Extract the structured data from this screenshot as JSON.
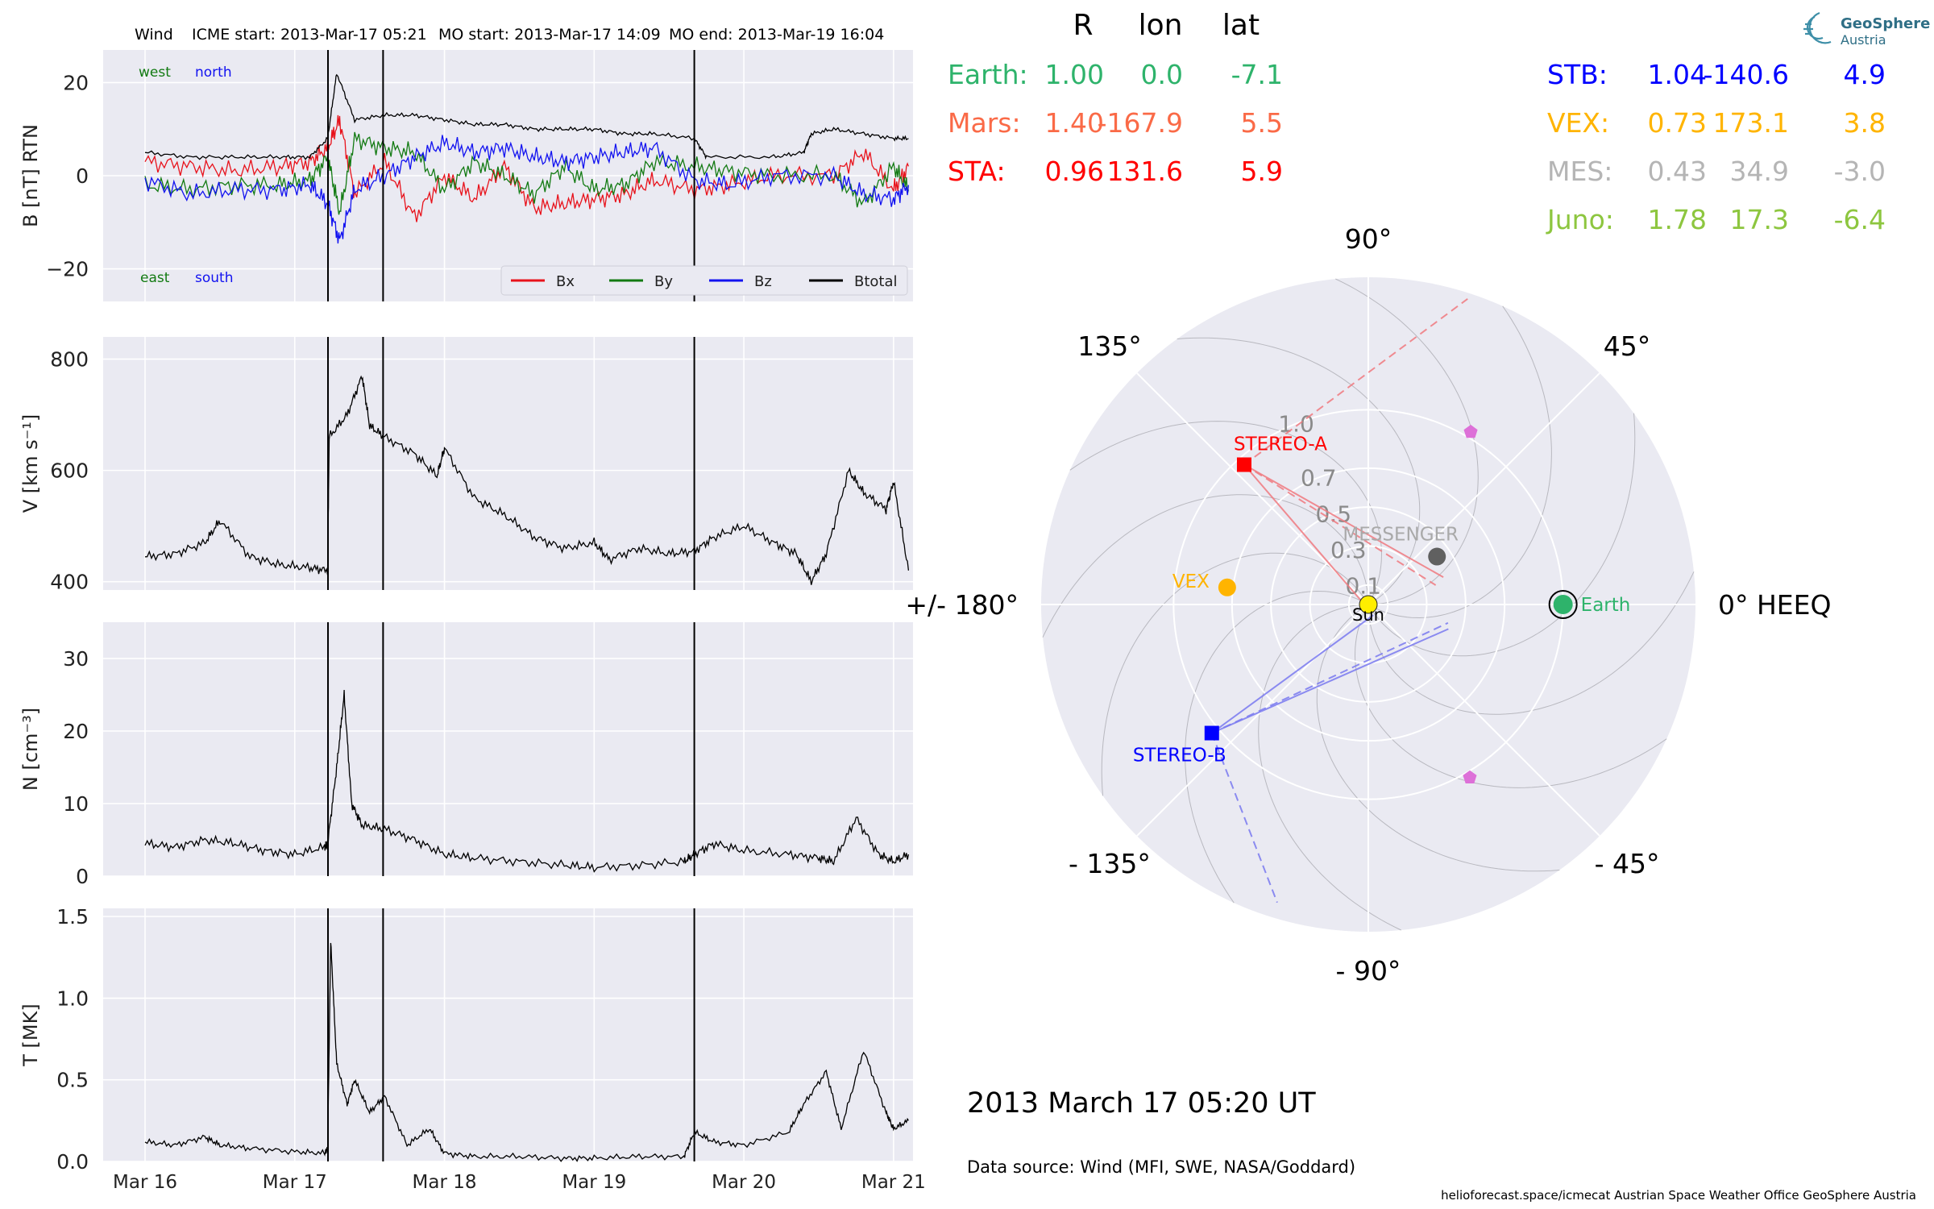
{
  "header": {
    "spacecraft": "Wind",
    "icme_start": "ICME start: 2013-Mar-17 05:21",
    "mo_start": "MO start: 2013-Mar-17 14:09",
    "mo_end": "MO end: 2013-Mar-19 16:04"
  },
  "chart_data": [
    {
      "type": "line",
      "panel": "magnetic-field",
      "ylabel": "B [nT] RTN",
      "ylim": [
        -27,
        27
      ],
      "yticks": [
        -20,
        0,
        20
      ],
      "ytick_labels": [
        "−20",
        "0",
        "20"
      ],
      "direction_labels": {
        "west": "west",
        "north": "north",
        "east": "east",
        "south": "south"
      },
      "legend": {
        "placement": "lower-right",
        "entries": [
          "Bx",
          "By",
          "Bz",
          "Btotal"
        ]
      },
      "series": [
        {
          "name": "Bx",
          "color": "#e8121b",
          "x": [
            16.0,
            16.3,
            16.6,
            16.9,
            17.1,
            17.22,
            17.3,
            17.4,
            17.6,
            17.8,
            18.0,
            18.2,
            18.4,
            18.6,
            18.8,
            19.0,
            19.2,
            19.4,
            19.67,
            19.9,
            20.2,
            20.6,
            20.8,
            21.0,
            21.1
          ],
          "y": [
            3,
            2,
            1,
            2,
            3,
            6,
            12,
            -4,
            3,
            -9,
            0,
            -5,
            2,
            -7,
            -6,
            -5,
            -4,
            -1,
            -3,
            -2,
            0,
            0,
            5,
            -3,
            2
          ]
        },
        {
          "name": "By",
          "color": "#127a12",
          "x": [
            16.0,
            16.3,
            16.6,
            16.9,
            17.1,
            17.22,
            17.3,
            17.4,
            17.6,
            17.8,
            18.0,
            18.2,
            18.4,
            18.6,
            18.8,
            19.0,
            19.2,
            19.4,
            19.67,
            19.9,
            20.2,
            20.6,
            20.8,
            21.0,
            21.1
          ],
          "y": [
            -2,
            -3,
            -2,
            -2,
            -1,
            4,
            -8,
            8,
            6,
            5,
            -3,
            3,
            0,
            -4,
            2,
            -3,
            -2,
            3,
            2,
            1,
            0,
            0,
            -6,
            2,
            -3
          ]
        },
        {
          "name": "Bz",
          "color": "#1212f0",
          "x": [
            16.0,
            16.3,
            16.6,
            16.9,
            17.1,
            17.22,
            17.3,
            17.4,
            17.6,
            17.8,
            18.0,
            18.2,
            18.4,
            18.6,
            18.8,
            19.0,
            19.2,
            19.4,
            19.67,
            19.9,
            20.2,
            20.6,
            20.8,
            21.0,
            21.1
          ],
          "y": [
            -1,
            -4,
            -3,
            -3,
            -2,
            -6,
            -14,
            -3,
            0,
            4,
            7,
            5,
            6,
            4,
            3,
            4,
            5,
            6,
            -1,
            -2,
            0,
            0,
            -4,
            -5,
            -2
          ]
        },
        {
          "name": "Btotal",
          "color": "#000000",
          "x": [
            16.0,
            16.3,
            16.6,
            16.9,
            17.1,
            17.22,
            17.28,
            17.4,
            17.6,
            17.8,
            18.0,
            18.2,
            18.4,
            18.6,
            18.8,
            19.0,
            19.2,
            19.4,
            19.67,
            19.75,
            20.2,
            20.4,
            20.45,
            20.6,
            20.8,
            21.0,
            21.1
          ],
          "y": [
            5,
            4,
            4,
            4,
            4,
            8,
            22,
            12,
            13,
            13,
            12,
            11,
            11,
            10,
            10,
            10,
            9,
            9,
            8,
            4,
            4,
            5,
            9,
            10,
            9,
            8,
            8
          ]
        }
      ]
    },
    {
      "type": "line",
      "panel": "velocity",
      "ylabel": "V [km s⁻¹]",
      "ylim": [
        385,
        840
      ],
      "yticks": [
        400,
        600,
        800
      ],
      "ytick_labels": [
        "400",
        "600",
        "800"
      ],
      "series": [
        {
          "name": "V",
          "color": "#000000",
          "x": [
            16.0,
            16.2,
            16.4,
            16.5,
            16.7,
            16.9,
            17.1,
            17.22,
            17.23,
            17.35,
            17.45,
            17.5,
            17.6,
            17.8,
            17.95,
            18.0,
            18.2,
            18.4,
            18.6,
            18.8,
            19.0,
            19.1,
            19.3,
            19.5,
            19.67,
            19.8,
            20.0,
            20.2,
            20.35,
            20.45,
            20.55,
            20.7,
            20.8,
            20.95,
            21.0,
            21.1
          ],
          "y": [
            445,
            450,
            470,
            510,
            445,
            430,
            425,
            420,
            660,
            700,
            770,
            680,
            660,
            630,
            590,
            640,
            550,
            520,
            480,
            460,
            470,
            440,
            460,
            450,
            455,
            480,
            500,
            470,
            450,
            400,
            450,
            600,
            560,
            530,
            580,
            420
          ]
        }
      ]
    },
    {
      "type": "line",
      "panel": "density",
      "ylabel": "N [cm⁻³]",
      "ylim": [
        0,
        35
      ],
      "yticks": [
        0,
        10,
        20,
        30
      ],
      "ytick_labels": [
        "0",
        "10",
        "20",
        "30"
      ],
      "series": [
        {
          "name": "N",
          "color": "#000000",
          "x": [
            16.0,
            16.2,
            16.4,
            16.6,
            16.8,
            17.0,
            17.2,
            17.22,
            17.28,
            17.33,
            17.38,
            17.45,
            17.6,
            17.8,
            18.0,
            18.2,
            18.5,
            18.8,
            19.0,
            19.3,
            19.6,
            19.67,
            19.8,
            20.0,
            20.3,
            20.5,
            20.6,
            20.75,
            20.9,
            21.0,
            21.1
          ],
          "y": [
            4.5,
            4,
            5,
            4.5,
            3.5,
            3,
            4,
            4.5,
            15,
            25,
            10,
            7,
            6.5,
            5,
            3,
            2.5,
            2,
            1.5,
            1.2,
            1.5,
            2,
            3,
            4.5,
            3.5,
            3,
            2.5,
            2,
            8,
            3,
            2,
            3
          ]
        }
      ]
    },
    {
      "type": "line",
      "panel": "temperature",
      "ylabel": "T [MK]",
      "ylim": [
        0,
        1.55
      ],
      "yticks": [
        0.0,
        0.5,
        1.0,
        1.5
      ],
      "ytick_labels": [
        "0.0",
        "0.5",
        "1.0",
        "1.5"
      ],
      "xticks": [
        16,
        17,
        18,
        19,
        20,
        21
      ],
      "xtick_labels": [
        "Mar 16",
        "Mar 17",
        "Mar 18",
        "Mar 19",
        "Mar 20",
        "Mar 21"
      ],
      "xlim": [
        15.72,
        21.13
      ],
      "event_lines": [
        17.222,
        17.59,
        19.669
      ],
      "series": [
        {
          "name": "T",
          "color": "#000000",
          "x": [
            16.0,
            16.2,
            16.4,
            16.5,
            16.7,
            17.0,
            17.2,
            17.22,
            17.24,
            17.28,
            17.35,
            17.4,
            17.5,
            17.6,
            17.75,
            17.9,
            18.0,
            18.2,
            18.5,
            18.8,
            19.0,
            19.3,
            19.6,
            19.67,
            19.8,
            20.0,
            20.3,
            20.4,
            20.55,
            20.65,
            20.8,
            20.95,
            21.0,
            21.1
          ],
          "y": [
            0.12,
            0.1,
            0.15,
            0.1,
            0.08,
            0.06,
            0.05,
            0.08,
            1.35,
            0.6,
            0.35,
            0.5,
            0.3,
            0.4,
            0.1,
            0.2,
            0.05,
            0.03,
            0.03,
            0.02,
            0.02,
            0.03,
            0.03,
            0.18,
            0.12,
            0.1,
            0.18,
            0.35,
            0.55,
            0.2,
            0.68,
            0.3,
            0.2,
            0.25
          ]
        }
      ]
    },
    {
      "type": "scatter",
      "panel": "positions",
      "projection": "polar",
      "rlim": [
        0,
        1.68
      ],
      "r_ticks": [
        0.1,
        0.3,
        0.5,
        0.7,
        1.0
      ],
      "r_tick_labels": [
        "0.1",
        "0.3",
        "0.5",
        "0.7",
        "1.0"
      ],
      "angle_ticks_deg": [
        0,
        45,
        90,
        135,
        180,
        -135,
        -90,
        -45
      ],
      "angle_tick_labels": [
        "0° HEEQ",
        "45°",
        "90°",
        "135°",
        "+/- 180°",
        "- 135°",
        "- 90°",
        "- 45°"
      ],
      "table_columns": [
        "R",
        "lon",
        "lat"
      ],
      "bodies": [
        {
          "key": "earth",
          "label": "Earth",
          "table_label": "Earth:",
          "r": 1.0,
          "lon": 0.0,
          "lat": -7.1,
          "color": "#2eb36b",
          "marker": "circle",
          "r_text": "1.00",
          "lon_text": "0.0",
          "lat_text": "-7.1"
        },
        {
          "key": "mars",
          "label": "",
          "table_label": "Mars:",
          "r": 1.4,
          "lon": -167.9,
          "lat": 5.5,
          "color": "#fa6a47",
          "marker": "none",
          "r_text": "1.40",
          "lon_text": "-167.9",
          "lat_text": "5.5"
        },
        {
          "key": "sta",
          "label": "STEREO-A",
          "table_label": "STA:",
          "r": 0.96,
          "lon": 131.6,
          "lat": 5.9,
          "color": "#ff0000",
          "marker": "square",
          "r_text": "0.96",
          "lon_text": "131.6",
          "lat_text": "5.9"
        },
        {
          "key": "stb",
          "label": "STEREO-B",
          "table_label": "STB:",
          "r": 1.04,
          "lon": -140.6,
          "lat": 4.9,
          "color": "#0000ff",
          "marker": "square",
          "r_text": "1.04",
          "lon_text": "-140.6",
          "lat_text": "4.9"
        },
        {
          "key": "vex",
          "label": "VEX",
          "table_label": "VEX:",
          "r": 0.73,
          "lon": 173.1,
          "lat": 3.8,
          "color": "#ffb400",
          "marker": "circle",
          "r_text": "0.73",
          "lon_text": "173.1",
          "lat_text": "3.8"
        },
        {
          "key": "mes",
          "label": "MESSENGER",
          "table_label": "MES:",
          "r": 0.43,
          "lon": 34.9,
          "lat": -3.0,
          "color": "#a9a9a9",
          "marker": "circle",
          "r_text": "0.43",
          "lon_text": "34.9",
          "lat_text": "-3.0"
        },
        {
          "key": "juno",
          "label": "",
          "table_label": "Juno:",
          "r": 1.78,
          "lon": 17.3,
          "lat": -6.4,
          "color": "#8dc63f",
          "marker": "none",
          "r_text": "1.78",
          "lon_text": "17.3",
          "lat_text": "-6.4"
        }
      ],
      "markers": [
        {
          "key": "pentagon-upper",
          "r": 1.03,
          "lon": 59.3,
          "color": "#dd70d8"
        },
        {
          "key": "pentagon-lower",
          "r": 1.03,
          "lon": -59.6,
          "color": "#dd70d8"
        }
      ],
      "sun_label": "Sun",
      "sun_color": "#ffee00",
      "background": "#eaeaf2"
    }
  ],
  "footer": {
    "timestamp": "2013 March 17  05:20 UT",
    "data_source": "Data source: Wind (MFI, SWE, NASA/Goddard)",
    "credits": "helioforecast.space/icmecat   Austrian Space Weather Office   GeoSphere Austria"
  },
  "logo": {
    "line1": "GeoSphere",
    "line2": "Austria"
  }
}
